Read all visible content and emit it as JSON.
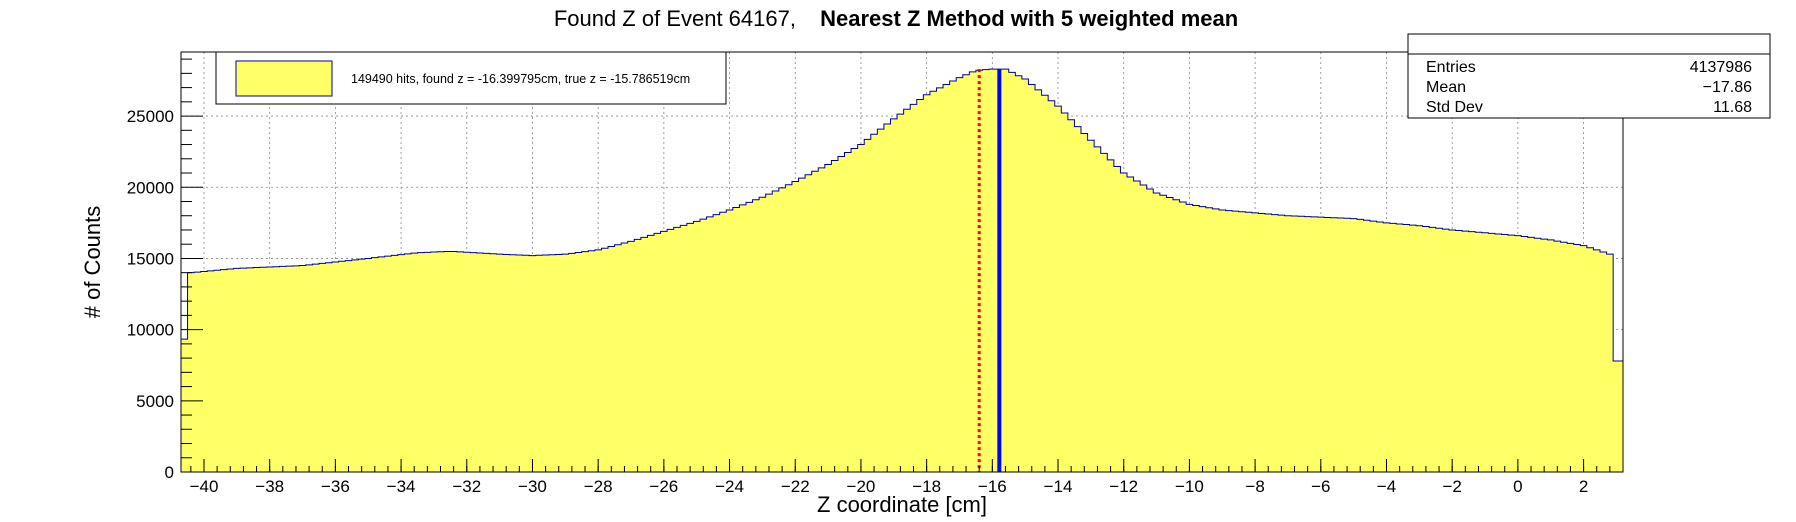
{
  "chart_data": {
    "type": "histogram",
    "title": "Found Z of Event 64167,",
    "title_bold": "Nearest Z Method with 5 weighted mean",
    "xlabel": "Z coordinate [cm]",
    "ylabel": "# of Counts",
    "xlim": [
      -40.7,
      3.2
    ],
    "ylim": [
      0,
      29500
    ],
    "x_ticks": [
      -40,
      -38,
      -36,
      -34,
      -32,
      -30,
      -28,
      -26,
      -24,
      -22,
      -20,
      -18,
      -16,
      -14,
      -12,
      -10,
      -8,
      -6,
      -4,
      -2,
      0,
      2
    ],
    "x_tick_labels": [
      "−40",
      "−38",
      "−36",
      "−34",
      "−32",
      "−30",
      "−28",
      "−26",
      "−24",
      "−22",
      "−20",
      "−18",
      "−16",
      "−14",
      "−12",
      "−10",
      "−8",
      "−6",
      "−4",
      "−2",
      "0",
      "2"
    ],
    "y_ticks": [
      0,
      5000,
      10000,
      15000,
      20000,
      25000
    ],
    "y_tick_labels": [
      "0",
      "5000",
      "10000",
      "15000",
      "20000",
      "25000"
    ],
    "grid": true,
    "fill_color": "#ffff66",
    "line_color": "#000099",
    "bin_width": 0.2,
    "x_start": -40.7,
    "profile": [
      [
        -40.7,
        7000
      ],
      [
        -40.4,
        14000
      ],
      [
        -39,
        14300
      ],
      [
        -37,
        14500
      ],
      [
        -35,
        15000
      ],
      [
        -33.5,
        15400
      ],
      [
        -32.5,
        15500
      ],
      [
        -31,
        15300
      ],
      [
        -30,
        15200
      ],
      [
        -29,
        15300
      ],
      [
        -28,
        15600
      ],
      [
        -27,
        16200
      ],
      [
        -26,
        16900
      ],
      [
        -25,
        17600
      ],
      [
        -24,
        18400
      ],
      [
        -23,
        19300
      ],
      [
        -22,
        20400
      ],
      [
        -21,
        21600
      ],
      [
        -20,
        23000
      ],
      [
        -19,
        24800
      ],
      [
        -18,
        26500
      ],
      [
        -17,
        27700
      ],
      [
        -16.5,
        28200
      ],
      [
        -16,
        28300
      ],
      [
        -15.6,
        28300
      ],
      [
        -15,
        27600
      ],
      [
        -14,
        25700
      ],
      [
        -13,
        23300
      ],
      [
        -12,
        21000
      ],
      [
        -11,
        19600
      ],
      [
        -10,
        18800
      ],
      [
        -9,
        18400
      ],
      [
        -8,
        18200
      ],
      [
        -7,
        18000
      ],
      [
        -6,
        17900
      ],
      [
        -5,
        17800
      ],
      [
        -4,
        17500
      ],
      [
        -3,
        17300
      ],
      [
        -2,
        17000
      ],
      [
        -1,
        16800
      ],
      [
        0,
        16600
      ],
      [
        1,
        16300
      ],
      [
        2,
        15900
      ],
      [
        2.8,
        15300
      ],
      [
        3.0,
        7800
      ],
      [
        3.2,
        7800
      ]
    ],
    "found_z": -16.399795,
    "true_z": -15.786519,
    "found_z_line_color": "#ff0000",
    "true_z_line_color": "#0000ff"
  },
  "legend": {
    "label": "149490 hits, found z = -16.399795cm, true z = -15.786519cm",
    "placement": "top-left"
  },
  "stats": {
    "rows": [
      {
        "name": "Entries",
        "value": "4137986"
      },
      {
        "name": "Mean",
        "value": "−17.86"
      },
      {
        "name": "Std Dev",
        "value": "11.68"
      }
    ]
  }
}
